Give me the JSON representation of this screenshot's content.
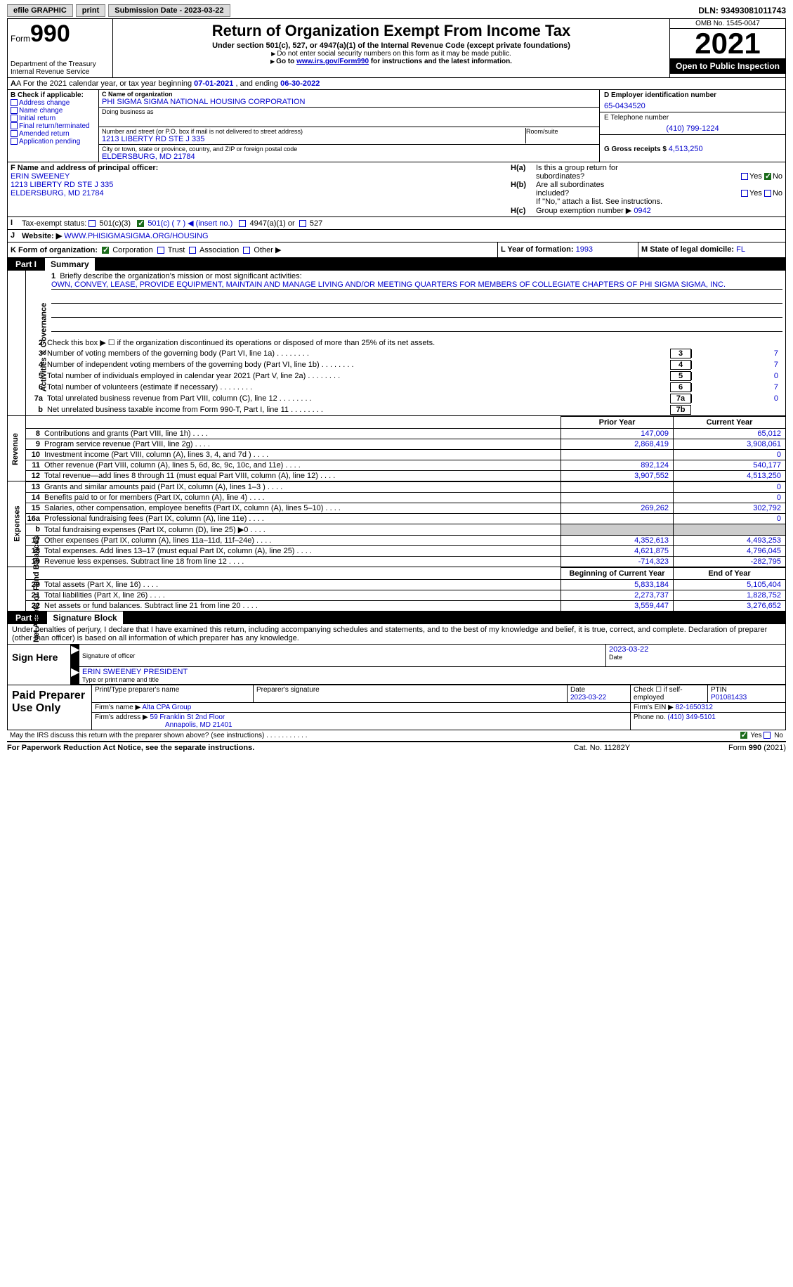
{
  "topbar": {
    "efile": "efile GRAPHIC",
    "print": "print",
    "subdate_lbl": "Submission Date - 2023-03-22",
    "dln": "DLN: 93493081011743"
  },
  "header": {
    "form_prefix": "Form",
    "form_num": "990",
    "dept": "Department of the Treasury",
    "irs": "Internal Revenue Service",
    "title": "Return of Organization Exempt From Income Tax",
    "subtitle": "Under section 501(c), 527, or 4947(a)(1) of the Internal Revenue Code (except private foundations)",
    "note1": "Do not enter social security numbers on this form as it may be made public.",
    "note2_pre": "Go to ",
    "note2_link": "www.irs.gov/Form990",
    "note2_post": " for instructions and the latest information.",
    "omb": "OMB No. 1545-0047",
    "year": "2021",
    "inspect": "Open to Public Inspection"
  },
  "rowA": {
    "text_pre": "A For the 2021 calendar year, or tax year beginning ",
    "begin": "07-01-2021",
    "mid": "   , and ending ",
    "end": "06-30-2022"
  },
  "colB": {
    "title": "B Check if applicable:",
    "addr": "Address change",
    "name": "Name change",
    "init": "Initial return",
    "final": "Final return/terminated",
    "amend": "Amended return",
    "app": "Application pending"
  },
  "colC": {
    "name_lbl": "C Name of organization",
    "name": "PHI SIGMA SIGMA NATIONAL HOUSING CORPORATION",
    "dba_lbl": "Doing business as",
    "addr_lbl": "Number and street (or P.O. box if mail is not delivered to street address)",
    "addr": "1213 LIBERTY RD STE J 335",
    "room_lbl": "Room/suite",
    "city_lbl": "City or town, state or province, country, and ZIP or foreign postal code",
    "city": "ELDERSBURG, MD  21784"
  },
  "colD": {
    "ein_lbl": "D Employer identification number",
    "ein": "65-0434520",
    "tel_lbl": "E Telephone number",
    "tel": "(410) 799-1224",
    "gross_lbl": "G Gross receipts $",
    "gross": "4,513,250"
  },
  "rowF": {
    "lbl": "F  Name and address of principal officer:",
    "name": "ERIN SWEENEY",
    "addr1": "1213 LIBERTY RD STE J 335",
    "addr2": "ELDERSBURG, MD  21784"
  },
  "rowH": {
    "ha_lbl": "H(a)",
    "ha_txt1": "Is this a group return for",
    "ha_txt2": "subordinates?",
    "hb_lbl": "H(b)",
    "hb_txt1": "Are all subordinates",
    "hb_txt2": "included?",
    "hb_note": "If \"No,\" attach a list. See instructions.",
    "hc_lbl": "H(c)",
    "hc_txt": "Group exemption number ▶",
    "hc_val": "0942",
    "yes": "Yes",
    "no": "No"
  },
  "rowI": {
    "lbl": "Tax-exempt status:",
    "o1": "501(c)(3)",
    "o2": "501(c) ( 7 ) ◀ (insert no.)",
    "o3": "4947(a)(1) or",
    "o4": "527"
  },
  "rowJ": {
    "lbl": "Website: ▶",
    "val": "WWW.PHISIGMASIGMA.ORG/HOUSING"
  },
  "rowK": {
    "lbl": "K Form of organization:",
    "corp": "Corporation",
    "trust": "Trust",
    "assoc": "Association",
    "other": "Other ▶",
    "l_lbl": "L Year of formation:",
    "l_val": "1993",
    "m_lbl": "M State of legal domicile:",
    "m_val": "FL"
  },
  "part1": {
    "num": "Part I",
    "title": "Summary",
    "section_ag": "Activities & Governance",
    "section_rev": "Revenue",
    "section_exp": "Expenses",
    "section_net": "Net Assets or Fund Balances",
    "l1_lbl": "Briefly describe the organization's mission or most significant activities:",
    "l1_val": "OWN, CONVEY, LEASE, PROVIDE EQUIPMENT, MAINTAIN AND MANAGE LIVING AND/OR MEETING QUARTERS FOR MEMBERS OF COLLEGIATE CHAPTERS OF PHI SIGMA SIGMA, INC.",
    "l2": "Check this box ▶ ☐  if the organization discontinued its operations or disposed of more than 25% of its net assets.",
    "rows_ag": [
      {
        "n": "3",
        "d": "Number of voting members of the governing body (Part VI, line 1a)",
        "b": "3",
        "v": "7"
      },
      {
        "n": "4",
        "d": "Number of independent voting members of the governing body (Part VI, line 1b)",
        "b": "4",
        "v": "7"
      },
      {
        "n": "5",
        "d": "Total number of individuals employed in calendar year 2021 (Part V, line 2a)",
        "b": "5",
        "v": "0"
      },
      {
        "n": "6",
        "d": "Total number of volunteers (estimate if necessary)",
        "b": "6",
        "v": "7"
      },
      {
        "n": "7a",
        "d": "Total unrelated business revenue from Part VIII, column (C), line 12",
        "b": "7a",
        "v": "0"
      },
      {
        "n": "b",
        "d": "Net unrelated business taxable income from Form 990-T, Part I, line 11",
        "b": "7b",
        "v": ""
      }
    ],
    "col_prior": "Prior Year",
    "col_current": "Current Year",
    "rows_rev": [
      {
        "n": "8",
        "d": "Contributions and grants (Part VIII, line 1h)",
        "p": "147,009",
        "c": "65,012"
      },
      {
        "n": "9",
        "d": "Program service revenue (Part VIII, line 2g)",
        "p": "2,868,419",
        "c": "3,908,061"
      },
      {
        "n": "10",
        "d": "Investment income (Part VIII, column (A), lines 3, 4, and 7d )",
        "p": "",
        "c": "0"
      },
      {
        "n": "11",
        "d": "Other revenue (Part VIII, column (A), lines 5, 6d, 8c, 9c, 10c, and 11e)",
        "p": "892,124",
        "c": "540,177"
      },
      {
        "n": "12",
        "d": "Total revenue—add lines 8 through 11 (must equal Part VIII, column (A), line 12)",
        "p": "3,907,552",
        "c": "4,513,250"
      }
    ],
    "rows_exp": [
      {
        "n": "13",
        "d": "Grants and similar amounts paid (Part IX, column (A), lines 1–3 )",
        "p": "",
        "c": "0"
      },
      {
        "n": "14",
        "d": "Benefits paid to or for members (Part IX, column (A), line 4)",
        "p": "",
        "c": "0"
      },
      {
        "n": "15",
        "d": "Salaries, other compensation, employee benefits (Part IX, column (A), lines 5–10)",
        "p": "269,262",
        "c": "302,792"
      },
      {
        "n": "16a",
        "d": "Professional fundraising fees (Part IX, column (A), line 11e)",
        "p": "",
        "c": "0"
      },
      {
        "n": "b",
        "d": "Total fundraising expenses (Part IX, column (D), line 25) ▶0",
        "p": "shade",
        "c": "shade"
      },
      {
        "n": "17",
        "d": "Other expenses (Part IX, column (A), lines 11a–11d, 11f–24e)",
        "p": "4,352,613",
        "c": "4,493,253"
      },
      {
        "n": "18",
        "d": "Total expenses. Add lines 13–17 (must equal Part IX, column (A), line 25)",
        "p": "4,621,875",
        "c": "4,796,045"
      },
      {
        "n": "19",
        "d": "Revenue less expenses. Subtract line 18 from line 12",
        "p": "-714,323",
        "c": "-282,795"
      }
    ],
    "col_begin": "Beginning of Current Year",
    "col_end": "End of Year",
    "rows_net": [
      {
        "n": "20",
        "d": "Total assets (Part X, line 16)",
        "p": "5,833,184",
        "c": "5,105,404"
      },
      {
        "n": "21",
        "d": "Total liabilities (Part X, line 26)",
        "p": "2,273,737",
        "c": "1,828,752"
      },
      {
        "n": "22",
        "d": "Net assets or fund balances. Subtract line 21 from line 20",
        "p": "3,559,447",
        "c": "3,276,652"
      }
    ]
  },
  "part2": {
    "num": "Part II",
    "title": "Signature Block",
    "decl": "Under penalties of perjury, I declare that I have examined this return, including accompanying schedules and statements, and to the best of my knowledge and belief, it is true, correct, and complete. Declaration of preparer (other than officer) is based on all information of which preparer has any knowledge.",
    "sign_here": "Sign Here",
    "sig_officer": "Signature of officer",
    "sig_date": "2023-03-22",
    "date_lbl": "Date",
    "name_title": "ERIN SWEENEY  PRESIDENT",
    "name_title_lbl": "Type or print name and title",
    "paid": "Paid Preparer Use Only",
    "prep_name_lbl": "Print/Type preparer's name",
    "prep_sig_lbl": "Preparer's signature",
    "prep_date_lbl": "Date",
    "prep_date": "2023-03-22",
    "prep_self": "Check ☐ if self-employed",
    "ptin_lbl": "PTIN",
    "ptin": "P01081433",
    "firm_name_lbl": "Firm's name      ▶",
    "firm_name": "Alta CPA Group",
    "firm_ein_lbl": "Firm's EIN ▶",
    "firm_ein": "82-1650312",
    "firm_addr_lbl": "Firm's address ▶",
    "firm_addr1": "59 Franklin St 2nd Floor",
    "firm_addr2": "Annapolis, MD  21401",
    "phone_lbl": "Phone no.",
    "phone": "(410) 349-5101",
    "discuss": "May the IRS discuss this return with the preparer shown above? (see instructions)",
    "yes": "Yes",
    "no": "No"
  },
  "footer": {
    "paperwork": "For Paperwork Reduction Act Notice, see the separate instructions.",
    "cat": "Cat. No. 11282Y",
    "form": "Form 990 (2021)"
  }
}
